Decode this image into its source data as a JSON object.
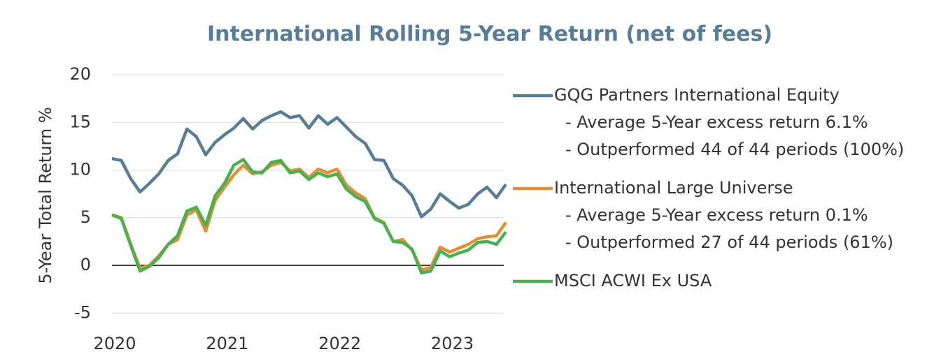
{
  "chart_data": {
    "type": "line",
    "title": "International Rolling 5-Year Return (net of fees)",
    "y_label": "5-Year Total Return %",
    "x": [
      2020,
      2020.0833,
      2020.1667,
      2020.25,
      2020.3333,
      2020.4167,
      2020.5,
      2020.5833,
      2020.6667,
      2020.75,
      2020.8333,
      2020.9167,
      2021,
      2021.0833,
      2021.1667,
      2021.25,
      2021.3333,
      2021.4167,
      2021.5,
      2021.5833,
      2021.6667,
      2021.75,
      2021.8333,
      2021.9167,
      2022,
      2022.0833,
      2022.1667,
      2022.25,
      2022.3333,
      2022.4167,
      2022.5,
      2022.5833,
      2022.6667,
      2022.75,
      2022.8333,
      2022.9167,
      2023,
      2023.0833,
      2023.1667,
      2023.25,
      2023.3333,
      2023.4167,
      2023.5
    ],
    "xlim": [
      2020,
      2023.5
    ],
    "xticks": [
      2020,
      2021,
      2022,
      2023
    ],
    "ylim": [
      -7,
      20
    ],
    "yticks": [
      -5,
      0,
      5,
      10,
      15,
      20
    ],
    "grid": true,
    "series": [
      {
        "name": "GQG Partners International Equity",
        "color": "#5a7d96",
        "notes": [
          "- Average 5-Year excess return 6.1%",
          "- Outperformed 44 of 44 periods (100%)"
        ],
        "values": [
          11.2,
          11.0,
          9.1,
          7.7,
          8.6,
          9.6,
          11.0,
          11.7,
          14.3,
          13.5,
          11.6,
          12.9,
          13.7,
          14.4,
          15.4,
          14.3,
          15.2,
          15.7,
          16.1,
          15.5,
          15.7,
          14.4,
          15.7,
          14.8,
          15.5,
          14.5,
          13.5,
          12.8,
          11.1,
          11.0,
          9.1,
          8.4,
          7.3,
          5.1,
          5.9,
          7.5,
          6.7,
          6.0,
          6.4,
          7.5,
          8.2,
          7.1,
          8.5
        ]
      },
      {
        "name": "International Large Universe",
        "color": "#e08f3a",
        "notes": [
          "- Average 5-Year excess return 0.1%",
          "- Outperformed 27 of 44 periods (61%)"
        ],
        "values": [
          5.3,
          5.0,
          2.2,
          -0.3,
          0.0,
          1.0,
          2.2,
          2.7,
          5.3,
          5.8,
          3.6,
          6.8,
          8.2,
          9.5,
          10.5,
          9.6,
          9.8,
          10.5,
          10.8,
          9.9,
          10.1,
          9.2,
          10.1,
          9.7,
          10.1,
          8.4,
          7.6,
          7.0,
          5.0,
          4.5,
          2.5,
          2.7,
          1.6,
          -0.5,
          -0.2,
          1.9,
          1.4,
          1.8,
          2.2,
          2.8,
          3.0,
          3.1,
          4.5
        ]
      },
      {
        "name": "MSCI ACWI Ex USA",
        "color": "#4caf50",
        "values": [
          5.3,
          4.9,
          2.1,
          -0.6,
          -0.1,
          0.8,
          2.2,
          3.1,
          5.7,
          6.1,
          4.2,
          7.3,
          8.6,
          10.5,
          11.1,
          9.8,
          9.7,
          10.8,
          11.0,
          9.7,
          9.9,
          9.0,
          9.7,
          9.3,
          9.6,
          8.0,
          7.2,
          6.7,
          4.9,
          4.4,
          2.5,
          2.4,
          1.7,
          -0.8,
          -0.6,
          1.5,
          0.9,
          1.3,
          1.6,
          2.4,
          2.5,
          2.2,
          3.5
        ]
      }
    ]
  }
}
